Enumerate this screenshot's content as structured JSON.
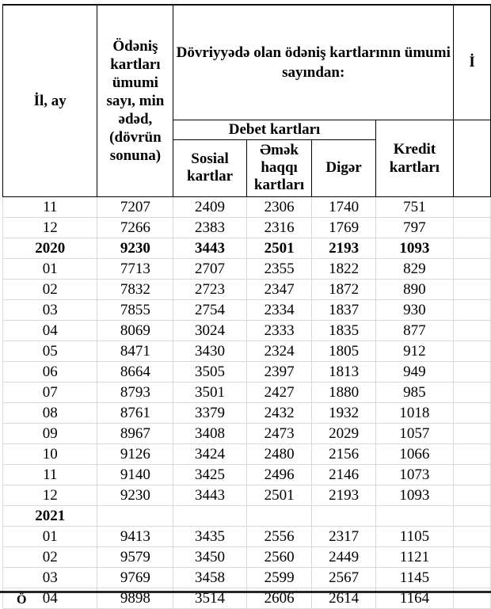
{
  "table": {
    "header": {
      "col_year_month": "İl, ay",
      "col_total": "Ödəniş kartları ümumi sayı, min ədəd, (dövrün sonuna)",
      "group_circulation_lines": [
        "Dövriyyədə olan ödəniş kartlarının ümumi",
        "sayından:"
      ],
      "group_debit": "Debet kartları",
      "col_social": "Sosial kartlar",
      "col_salary": "Əmək haqqı kartları",
      "col_other": "Digər",
      "col_credit": "Kredit kartları",
      "partial_right_header_fragment": "İ"
    },
    "rows": [
      {
        "period": "11",
        "total": "7207",
        "social": "2409",
        "salary": "2306",
        "other": "1740",
        "credit": "751",
        "bold": false
      },
      {
        "period": "12",
        "total": "7266",
        "social": "2383",
        "salary": "2316",
        "other": "1769",
        "credit": "797",
        "bold": false
      },
      {
        "period": "2020",
        "total": "9230",
        "social": "3443",
        "salary": "2501",
        "other": "2193",
        "credit": "1093",
        "bold": true
      },
      {
        "period": "01",
        "total": "7713",
        "social": "2707",
        "salary": "2355",
        "other": "1822",
        "credit": "829",
        "bold": false
      },
      {
        "period": "02",
        "total": "7832",
        "social": "2723",
        "salary": "2347",
        "other": "1872",
        "credit": "890",
        "bold": false
      },
      {
        "period": "03",
        "total": "7855",
        "social": "2754",
        "salary": "2334",
        "other": "1837",
        "credit": "930",
        "bold": false
      },
      {
        "period": "04",
        "total": "8069",
        "social": "3024",
        "salary": "2333",
        "other": "1835",
        "credit": "877",
        "bold": false
      },
      {
        "period": "05",
        "total": "8471",
        "social": "3430",
        "salary": "2324",
        "other": "1805",
        "credit": "912",
        "bold": false
      },
      {
        "period": "06",
        "total": "8664",
        "social": "3505",
        "salary": "2397",
        "other": "1813",
        "credit": "949",
        "bold": false
      },
      {
        "period": "07",
        "total": "8793",
        "social": "3501",
        "salary": "2427",
        "other": "1880",
        "credit": "985",
        "bold": false
      },
      {
        "period": "08",
        "total": "8761",
        "social": "3379",
        "salary": "2432",
        "other": "1932",
        "credit": "1018",
        "bold": false
      },
      {
        "period": "09",
        "total": "8967",
        "social": "3408",
        "salary": "2473",
        "other": "2029",
        "credit": "1057",
        "bold": false
      },
      {
        "period": "10",
        "total": "9126",
        "social": "3424",
        "salary": "2480",
        "other": "2156",
        "credit": "1066",
        "bold": false
      },
      {
        "period": "11",
        "total": "9140",
        "social": "3425",
        "salary": "2496",
        "other": "2146",
        "credit": "1073",
        "bold": false
      },
      {
        "period": "12",
        "total": "9230",
        "social": "3443",
        "salary": "2501",
        "other": "2193",
        "credit": "1093",
        "bold": false
      },
      {
        "period": "2021",
        "total": "",
        "social": "",
        "salary": "",
        "other": "",
        "credit": "",
        "bold": true
      },
      {
        "period": "01",
        "total": "9413",
        "social": "3435",
        "salary": "2556",
        "other": "2317",
        "credit": "1105",
        "bold": false
      },
      {
        "period": "02",
        "total": "9579",
        "social": "3450",
        "salary": "2560",
        "other": "2449",
        "credit": "1121",
        "bold": false
      },
      {
        "period": "03",
        "total": "9769",
        "social": "3458",
        "salary": "2599",
        "other": "2567",
        "credit": "1145",
        "bold": false
      },
      {
        "period": "04",
        "total": "9898",
        "social": "3514",
        "salary": "2606",
        "other": "2614",
        "credit": "1164",
        "bold": false
      }
    ]
  },
  "footnote_fragment": "Ö",
  "colors": {
    "header_border": "#000000",
    "grid_line": "#d9d9d9",
    "thick_rule": "#262626",
    "text": "#000000",
    "background": "#ffffff"
  }
}
